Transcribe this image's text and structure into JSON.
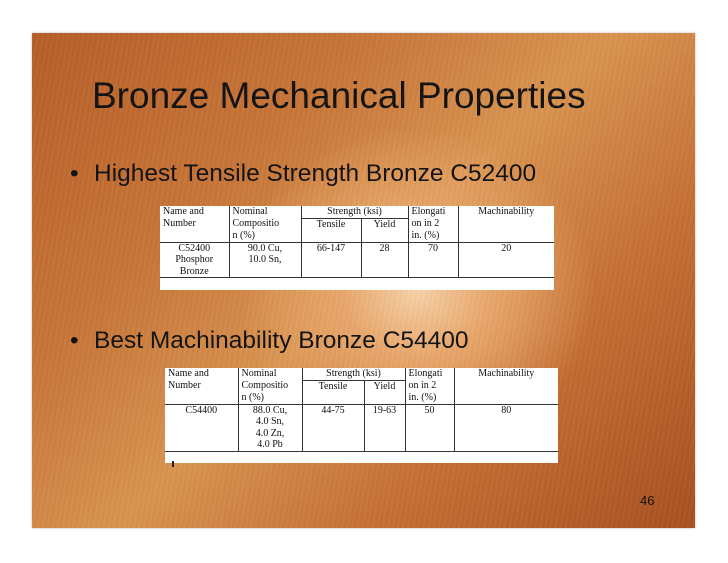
{
  "slide": {
    "title": "Bronze Mechanical Properties",
    "page_number": "46"
  },
  "bullets": [
    {
      "marker": "•",
      "text": "Highest Tensile Strength Bronze C52400"
    },
    {
      "marker": "•",
      "text": "Best Machinability Bronze C54400"
    }
  ],
  "table1": {
    "headers": {
      "name_line1": "Name and",
      "name_line2": "Number",
      "comp_line1": "Nominal",
      "comp_line2": "Compositio",
      "comp_line3": "n (%)",
      "strength": "Strength (ksi)",
      "tensile": "Tensile",
      "yield": "Yield",
      "elong_line1": "Elongati",
      "elong_line2": "on in 2",
      "elong_line3": "in. (%)",
      "machinability": "Machinability"
    },
    "row": {
      "name_line1": "C52400",
      "name_line2": "Phosphor",
      "name_line3": "Bronze",
      "comp_line1": "90.0 Cu,",
      "comp_line2": "10.0 Sn,",
      "tensile": "66-147",
      "yield": "28",
      "elongation": "70",
      "machinability": "20"
    }
  },
  "table2": {
    "headers": {
      "name_line1": "Name and",
      "name_line2": "Number",
      "comp_line1": "Nominal",
      "comp_line2": "Compositio",
      "comp_line3": "n (%)",
      "strength": "Strength (ksi)",
      "tensile": "Tensile",
      "yield": "Yield",
      "elong_line1": "Elongati",
      "elong_line2": "on in 2",
      "elong_line3": "in. (%)",
      "machinability": "Machinability"
    },
    "row": {
      "name": "C54400",
      "comp_line1": "88.0 Cu,",
      "comp_line2": "4.0 Sn,",
      "comp_line3": "4.0 Zn,",
      "comp_line4": "4.0 Pb",
      "tensile": "44-75",
      "yield": "19-63",
      "elongation": "50",
      "machinability": "80"
    }
  }
}
